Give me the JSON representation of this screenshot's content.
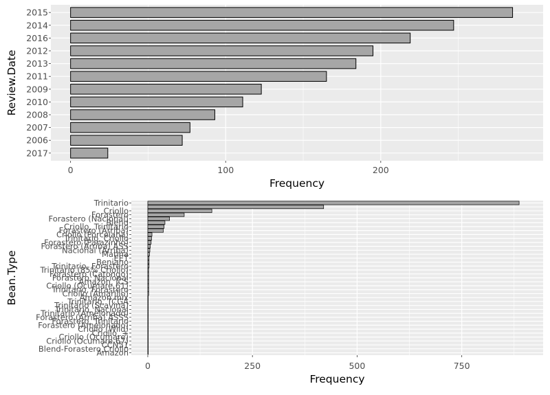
{
  "chart_data": [
    {
      "type": "bar",
      "orientation": "horizontal",
      "xlabel": "Frequency",
      "ylabel": "Review.Date",
      "xlim": [
        0,
        292
      ],
      "xticks": [
        0,
        100,
        200
      ],
      "grid": true,
      "bar_fill": "#a6a6a6",
      "bar_stroke": "#000000",
      "panel_background": "#ebebeb",
      "categories": [
        "2015",
        "2014",
        "2016",
        "2012",
        "2013",
        "2011",
        "2009",
        "2010",
        "2008",
        "2007",
        "2006",
        "2017"
      ],
      "values": [
        285,
        247,
        219,
        195,
        184,
        165,
        123,
        111,
        93,
        77,
        72,
        24
      ]
    },
    {
      "type": "bar",
      "orientation": "horizontal",
      "xlabel": "Frequency",
      "ylabel": "Bean.Type",
      "xlim": [
        0,
        905
      ],
      "xticks": [
        0,
        250,
        500,
        750
      ],
      "grid": true,
      "bar_fill": "#a6a6a6",
      "bar_stroke": "#000000",
      "panel_background": "#ebebeb",
      "categories": [
        "Trinitario",
        "",
        "Criollo",
        "Forastero",
        "Forastero (Nacional)",
        "Blend",
        "Criollo, Trinitario",
        "Forastero (Arriba)",
        "Criollo (Porcelana)",
        "Trinitario, Criollo",
        "Forastero (Parazinho)",
        "Forastero (Arriba) ASS",
        "Nacional (Arriba)",
        "Matina",
        "EET",
        "Beniano",
        "Trinitario, Forastero",
        "Trinitario (85% Criollo)",
        "Forastero (Catongo)",
        "Forastero, Nacional",
        "Amazon, ICS",
        "Criollo (Ocumare 61)",
        "Trinitario, Forastero",
        "Criollo (Amarillo)",
        "Amazon mix",
        "Trinitario, TCGA",
        "Trinitario (Scavina)",
        "Trinitario, Nacional",
        "Trinitario (Amelonado)",
        "Forastero (Arriba) ASSS",
        "Forastero, Trinitario",
        "Forastero (Amelonado)",
        "Criollo (Wild)",
        "Criollo, +",
        "Criollo (Ocumare)",
        "Criollo (Ocumare 67)",
        "CCN51",
        "Blend-Forastero,Criollo",
        "Amazon"
      ],
      "tick_labels_shown": [
        "Trinitario",
        "Criollo",
        "Forastero",
        "Forastero (Nacional)",
        "Blend",
        "Criollo, Trinitario",
        "Forastero (Arriba)",
        "Criollo (Porcelana)",
        "Trinitario, Criollo",
        "Forastero (Parazinho)",
        "Forastero (Arriba) ASS",
        "Nacional (Arriba)",
        "Matina",
        "EET",
        "Beniano",
        "Trinitario, Forastero",
        "Trinitario (85% Criollo)",
        "Forastero (Catongo)",
        "Forastero, Nacional",
        "Criollo (Ocumare 61)",
        "Criollo (Amarillo)",
        "Amazon mix",
        "Trinitario, TCGA",
        "Trinitario (Scavina)",
        "Trinitario, Nacional",
        "Forastero (Arriba) ASSS",
        "Forastero (Amelonado)",
        "Criollo (Wild)",
        "Criollo (Ocumare)",
        "Criollo (Ocumare 67)",
        "CCN51",
        "Blend-Forastero,Criollo",
        "Amazon"
      ],
      "values": [
        887,
        420,
        153,
        87,
        52,
        41,
        39,
        37,
        10,
        9,
        8,
        6,
        5,
        4,
        3,
        3,
        3,
        2,
        2,
        2,
        2,
        2,
        2,
        2,
        1,
        1,
        1,
        1,
        1,
        1,
        1,
        1,
        1,
        1,
        1,
        1,
        1,
        1,
        1
      ]
    }
  ]
}
